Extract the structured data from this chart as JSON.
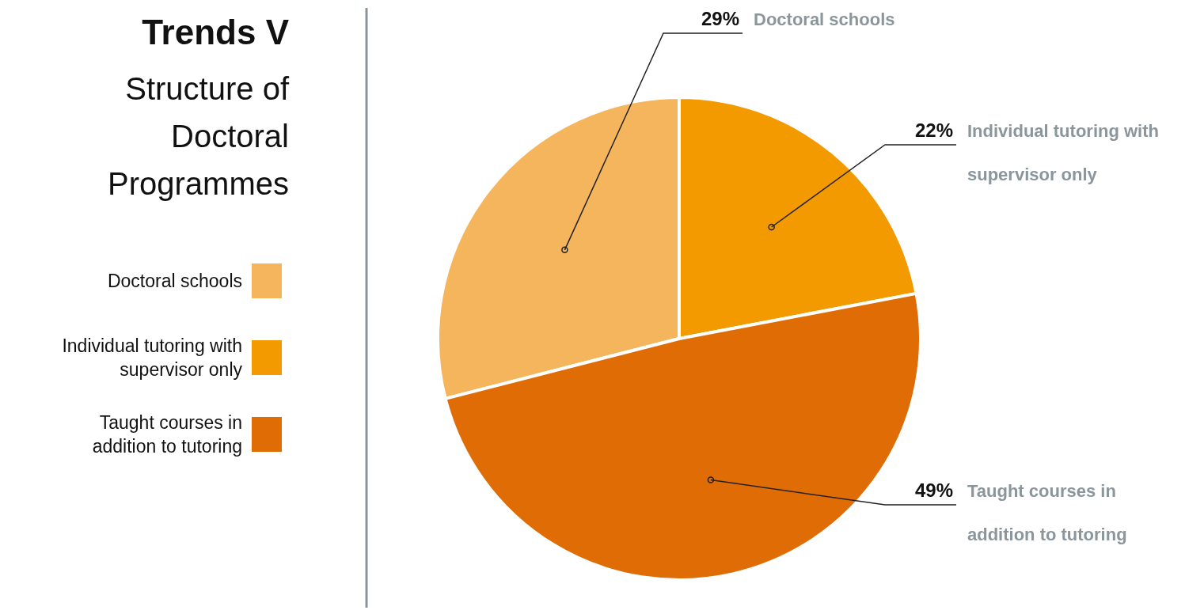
{
  "chart_data": {
    "type": "pie",
    "title": "Trends V",
    "subtitle": "Structure of Doctoral Programmes",
    "categories": [
      "Doctoral schools",
      "Individual tutoring with supervisor only",
      "Taught courses in addition to tutoring"
    ],
    "values": [
      29,
      22,
      49
    ],
    "colors": [
      "#f5b55c",
      "#f29a00",
      "#e06c05"
    ],
    "value_labels": [
      "29%",
      "22%",
      "49%"
    ],
    "legend": "left"
  }
}
